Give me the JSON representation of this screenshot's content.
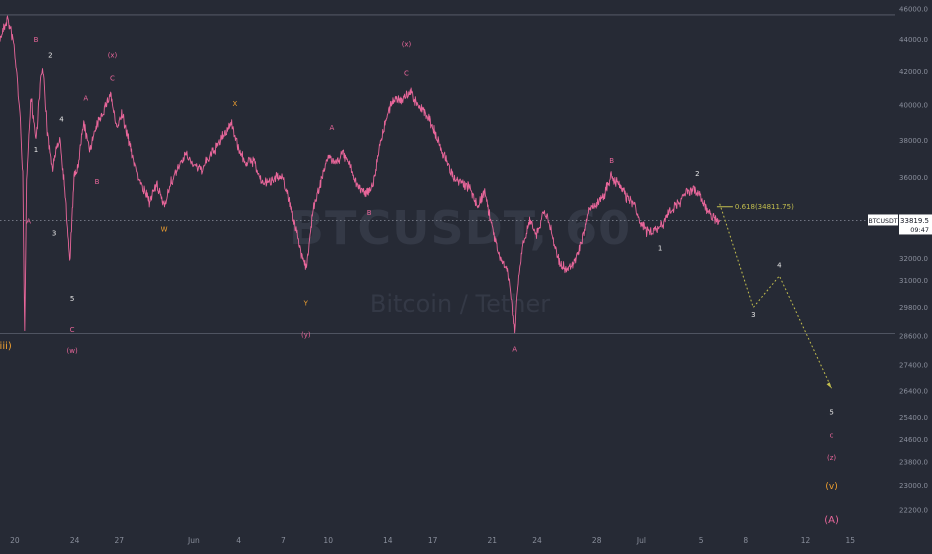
{
  "chart_data": {
    "type": "line",
    "symbol": "BTCUSDT",
    "watermark": {
      "symbol": "BTCUSDT, 60",
      "name": "Bitcoin / Tether"
    },
    "y_axis": {
      "ticks": [
        46000,
        44000,
        42000,
        40000,
        38000,
        36000,
        34000,
        32000,
        31000,
        29800,
        28600,
        27400,
        26400,
        25400,
        24600,
        23800,
        23000,
        22200
      ],
      "tick_labels": [
        "46000.0",
        "44000.0",
        "42000.0",
        "40000.0",
        "38000.0",
        "36000.0",
        "34000.0",
        "32000.0",
        "31000.0",
        "29800.0",
        "28600.0",
        "27400.0",
        "26400.0",
        "25400.0",
        "24600.0",
        "23800.0",
        "23000.0",
        "22200.0"
      ],
      "scale": "log",
      "range": [
        21500,
        46600
      ]
    },
    "x_axis": {
      "ticks": [
        "2021-05-20",
        "2021-05-24",
        "2021-05-27",
        "2021-06-01",
        "2021-06-04",
        "2021-06-07",
        "2021-06-10",
        "2021-06-14",
        "2021-06-17",
        "2021-06-21",
        "2021-06-24",
        "2021-06-28",
        "2021-07-01",
        "2021-07-05",
        "2021-07-08",
        "2021-07-12",
        "2021-07-15"
      ],
      "tick_labels": [
        "20",
        "24",
        "27",
        "Jun",
        "4",
        "7",
        "10",
        "14",
        "17",
        "21",
        "24",
        "28",
        "Jul",
        "5",
        "8",
        "12",
        "15"
      ],
      "range": [
        "2021-05-19",
        "2021-07-18"
      ]
    },
    "current_price": {
      "value": 33819.5,
      "label": "33819.5",
      "countdown": "09:47"
    },
    "horizontal_lines": [
      45600,
      28700
    ],
    "price_path": [
      [
        "2021-05-19 00:00",
        44000
      ],
      [
        "2021-05-19 12:00",
        45400
      ],
      [
        "2021-05-19 22:00",
        43800
      ],
      [
        "2021-05-20 04:00",
        41500
      ],
      [
        "2021-05-20 09:00",
        39000
      ],
      [
        "2021-05-20 13:00",
        36200
      ],
      [
        "2021-05-20 15:00",
        30500
      ],
      [
        "2021-05-20 16:00",
        28700
      ],
      [
        "2021-05-20 19:00",
        36000
      ],
      [
        "2021-05-21 02:00",
        40500
      ],
      [
        "2021-05-21 10:00",
        38000
      ],
      [
        "2021-05-21 18:00",
        41800
      ],
      [
        "2021-05-21 22:00",
        41900
      ],
      [
        "2021-05-22 04:00",
        38500
      ],
      [
        "2021-05-22 12:00",
        36500
      ],
      [
        "2021-05-23 00:00",
        38200
      ],
      [
        "2021-05-23 08:00",
        35500
      ],
      [
        "2021-05-23 16:00",
        31800
      ],
      [
        "2021-05-23 23:00",
        36000
      ],
      [
        "2021-05-24 06:00",
        36600
      ],
      [
        "2021-05-24 14:00",
        39000
      ],
      [
        "2021-05-25 00:00",
        37500
      ],
      [
        "2021-05-25 12:00",
        38800
      ],
      [
        "2021-05-26 00:00",
        39800
      ],
      [
        "2021-05-26 10:00",
        40700
      ],
      [
        "2021-05-26 20:00",
        38600
      ],
      [
        "2021-05-27 04:00",
        39500
      ],
      [
        "2021-05-27 14:00",
        38200
      ],
      [
        "2021-05-28 00:00",
        36800
      ],
      [
        "2021-05-28 12:00",
        35500
      ],
      [
        "2021-05-29 00:00",
        34800
      ],
      [
        "2021-05-29 12:00",
        35600
      ],
      [
        "2021-05-30 00:00",
        34600
      ],
      [
        "2021-05-30 12:00",
        35800
      ],
      [
        "2021-05-31 00:00",
        36600
      ],
      [
        "2021-05-31 12:00",
        37200
      ],
      [
        "2021-06-01 00:00",
        36700
      ],
      [
        "2021-06-01 12:00",
        36400
      ],
      [
        "2021-06-02 00:00",
        37000
      ],
      [
        "2021-06-02 12:00",
        37600
      ],
      [
        "2021-06-03 00:00",
        38300
      ],
      [
        "2021-06-03 12:00",
        39000
      ],
      [
        "2021-06-04 00:00",
        37500
      ],
      [
        "2021-06-04 12:00",
        36800
      ],
      [
        "2021-06-05 00:00",
        36900
      ],
      [
        "2021-06-05 12:00",
        35800
      ],
      [
        "2021-06-06 00:00",
        35700
      ],
      [
        "2021-06-06 12:00",
        36100
      ],
      [
        "2021-06-07 00:00",
        35900
      ],
      [
        "2021-06-07 12:00",
        34500
      ],
      [
        "2021-06-08 00:00",
        32800
      ],
      [
        "2021-06-08 12:00",
        31500
      ],
      [
        "2021-06-08 18:00",
        32800
      ],
      [
        "2021-06-09 00:00",
        34500
      ],
      [
        "2021-06-09 12:00",
        35800
      ],
      [
        "2021-06-10 00:00",
        37100
      ],
      [
        "2021-06-10 12:00",
        36800
      ],
      [
        "2021-06-11 00:00",
        37300
      ],
      [
        "2021-06-11 12:00",
        36600
      ],
      [
        "2021-06-12 00:00",
        35500
      ],
      [
        "2021-06-12 12:00",
        35200
      ],
      [
        "2021-06-13 00:00",
        35600
      ],
      [
        "2021-06-13 12:00",
        38000
      ],
      [
        "2021-06-14 00:00",
        39500
      ],
      [
        "2021-06-14 12:00",
        40500
      ],
      [
        "2021-06-15 00:00",
        40300
      ],
      [
        "2021-06-15 12:00",
        40800
      ],
      [
        "2021-06-16 00:00",
        40000
      ],
      [
        "2021-06-16 12:00",
        39600
      ],
      [
        "2021-06-17 00:00",
        38800
      ],
      [
        "2021-06-17 12:00",
        37600
      ],
      [
        "2021-06-18 00:00",
        36800
      ],
      [
        "2021-06-18 12:00",
        35800
      ],
      [
        "2021-06-19 00:00",
        35700
      ],
      [
        "2021-06-19 12:00",
        35400
      ],
      [
        "2021-06-20 00:00",
        34500
      ],
      [
        "2021-06-20 12:00",
        35300
      ],
      [
        "2021-06-21 00:00",
        33500
      ],
      [
        "2021-06-21 12:00",
        32000
      ],
      [
        "2021-06-22 00:00",
        31500
      ],
      [
        "2021-06-22 06:00",
        30500
      ],
      [
        "2021-06-22 12:00",
        28800
      ],
      [
        "2021-06-22 16:00",
        30500
      ],
      [
        "2021-06-23 00:00",
        32500
      ],
      [
        "2021-06-23 12:00",
        33800
      ],
      [
        "2021-06-24 00:00",
        33200
      ],
      [
        "2021-06-24 12:00",
        34400
      ],
      [
        "2021-06-25 00:00",
        33200
      ],
      [
        "2021-06-25 12:00",
        31800
      ],
      [
        "2021-06-26 00:00",
        31400
      ],
      [
        "2021-06-26 12:00",
        31800
      ],
      [
        "2021-06-27 00:00",
        32800
      ],
      [
        "2021-06-27 12:00",
        34400
      ],
      [
        "2021-06-28 00:00",
        34600
      ],
      [
        "2021-06-28 12:00",
        35100
      ],
      [
        "2021-06-29 00:00",
        36100
      ],
      [
        "2021-06-29 12:00",
        35600
      ],
      [
        "2021-06-30 00:00",
        35000
      ],
      [
        "2021-06-30 12:00",
        34600
      ],
      [
        "2021-07-01 00:00",
        33600
      ],
      [
        "2021-07-01 12:00",
        33200
      ],
      [
        "2021-07-02 00:00",
        33400
      ],
      [
        "2021-07-02 12:00",
        33700
      ],
      [
        "2021-07-03 00:00",
        34400
      ],
      [
        "2021-07-03 12:00",
        34700
      ],
      [
        "2021-07-04 00:00",
        35200
      ],
      [
        "2021-07-04 12:00",
        35400
      ],
      [
        "2021-07-05 00:00",
        35000
      ],
      [
        "2021-07-05 12:00",
        34100
      ],
      [
        "2021-07-06 00:00",
        33800
      ],
      [
        "2021-07-06 06:00",
        33820
      ]
    ],
    "projection": {
      "style": "dotted",
      "color": "#c4bf4e",
      "points": [
        [
          "2021-07-06 06:00",
          34650
        ],
        [
          "2021-07-08 12:00",
          29800
        ],
        [
          "2021-07-10 06:00",
          31200
        ],
        [
          "2021-07-13 18:00",
          26500
        ]
      ]
    },
    "fib_label": {
      "text": "0.618(34811.75)",
      "date": "2021-07-07 00:00",
      "price": 34600,
      "color": "#c4bf4e"
    },
    "wave_labels": [
      {
        "text": "(iii)",
        "date": "2021-05-19 06:00",
        "price": 28200,
        "color": "#f0a030",
        "size": 10
      },
      {
        "text": "A",
        "date": "2021-05-20 22:00",
        "price": 33800,
        "color": "#e8669a",
        "size": 7
      },
      {
        "text": "B",
        "date": "2021-05-21 10:00",
        "price": 44000,
        "color": "#e8669a",
        "size": 7
      },
      {
        "text": "1",
        "date": "2021-05-21 10:00",
        "price": 37500,
        "color": "#e6e6e6",
        "size": 7
      },
      {
        "text": "2",
        "date": "2021-05-22 09:00",
        "price": 43000,
        "color": "#e6e6e6",
        "size": 7
      },
      {
        "text": "3",
        "date": "2021-05-22 15:00",
        "price": 33200,
        "color": "#e6e6e6",
        "size": 7
      },
      {
        "text": "4",
        "date": "2021-05-23 03:00",
        "price": 39200,
        "color": "#e6e6e6",
        "size": 7
      },
      {
        "text": "5",
        "date": "2021-05-23 20:00",
        "price": 30200,
        "color": "#e6e6e6",
        "size": 7
      },
      {
        "text": "C",
        "date": "2021-05-23 20:00",
        "price": 28850,
        "color": "#e8669a",
        "size": 7
      },
      {
        "text": "(w)",
        "date": "2021-05-23 20:00",
        "price": 28000,
        "color": "#e8669a",
        "size": 7
      },
      {
        "text": "A",
        "date": "2021-05-24 18:00",
        "price": 40400,
        "color": "#e8669a",
        "size": 7
      },
      {
        "text": "B",
        "date": "2021-05-25 12:00",
        "price": 35800,
        "color": "#e8669a",
        "size": 7
      },
      {
        "text": "C",
        "date": "2021-05-26 13:00",
        "price": 41600,
        "color": "#e8669a",
        "size": 7
      },
      {
        "text": "(x)",
        "date": "2021-05-26 13:00",
        "price": 43000,
        "color": "#e8669a",
        "size": 7
      },
      {
        "text": "W",
        "date": "2021-05-30 00:00",
        "price": 33400,
        "color": "#f0a030",
        "size": 7
      },
      {
        "text": "X",
        "date": "2021-06-03 18:00",
        "price": 40100,
        "color": "#f0a030",
        "size": 7
      },
      {
        "text": "Y",
        "date": "2021-06-08 12:00",
        "price": 30000,
        "color": "#f0a030",
        "size": 7
      },
      {
        "text": "(y)",
        "date": "2021-06-08 12:00",
        "price": 28650,
        "color": "#e8669a",
        "size": 7
      },
      {
        "text": "A",
        "date": "2021-06-10 06:00",
        "price": 38700,
        "color": "#e8669a",
        "size": 7
      },
      {
        "text": "B",
        "date": "2021-06-12 18:00",
        "price": 34200,
        "color": "#e8669a",
        "size": 7
      },
      {
        "text": "C",
        "date": "2021-06-15 06:00",
        "price": 41900,
        "color": "#e8669a",
        "size": 7
      },
      {
        "text": "(x)",
        "date": "2021-06-15 06:00",
        "price": 43700,
        "color": "#e8669a",
        "size": 7
      },
      {
        "text": "A",
        "date": "2021-06-22 12:00",
        "price": 28050,
        "color": "#e8669a",
        "size": 7
      },
      {
        "text": "B",
        "date": "2021-06-29 00:00",
        "price": 36900,
        "color": "#e8669a",
        "size": 7
      },
      {
        "text": "1",
        "date": "2021-07-02 06:00",
        "price": 32500,
        "color": "#e6e6e6",
        "size": 7
      },
      {
        "text": "2",
        "date": "2021-07-04 18:00",
        "price": 36200,
        "color": "#e6e6e6",
        "size": 7
      },
      {
        "text": "3",
        "date": "2021-07-08 12:00",
        "price": 29500,
        "color": "#e6e6e6",
        "size": 7
      },
      {
        "text": "4",
        "date": "2021-07-10 06:00",
        "price": 31700,
        "color": "#e6e6e6",
        "size": 7
      },
      {
        "text": "5",
        "date": "2021-07-13 18:00",
        "price": 25600,
        "color": "#e6e6e6",
        "size": 7
      },
      {
        "text": "c",
        "date": "2021-07-13 18:00",
        "price": 24750,
        "color": "#e8669a",
        "size": 7
      },
      {
        "text": "(z)",
        "date": "2021-07-13 18:00",
        "price": 23950,
        "color": "#e8669a",
        "size": 7
      },
      {
        "text": "(v)",
        "date": "2021-07-13 18:00",
        "price": 23000,
        "color": "#f0a030",
        "size": 9
      },
      {
        "text": "(A)",
        "date": "2021-07-13 18:00",
        "price": 21900,
        "color": "#e8669a",
        "size": 10
      }
    ],
    "colors": {
      "background": "#262a35",
      "price": "#e8669a",
      "axis_text": "#8a8f9c",
      "price_tag_bg": "#ffffff",
      "price_tag_text": "#131722"
    }
  }
}
